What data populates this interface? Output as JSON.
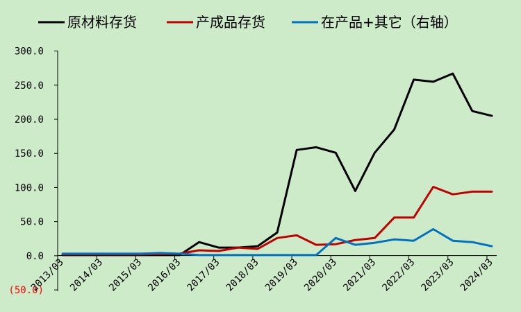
{
  "chart_data": {
    "type": "line",
    "x": [
      "2013/03",
      "2013/06",
      "2013/09",
      "2013/12",
      "2014/03",
      "2014/06",
      "2014/09",
      "2014/12",
      "2015/03",
      "2015/06",
      "2015/09",
      "2015/12",
      "2016/03",
      "2016/06",
      "2016/09",
      "2016/12",
      "2017/03",
      "2017/06",
      "2017/09",
      "2017/12",
      "2018/03",
      "2018/06",
      "2018/09",
      "2018/12",
      "2019/03",
      "2019/06",
      "2019/09",
      "2019/12",
      "2020/03",
      "2020/06",
      "2020/09",
      "2020/12",
      "2021/03",
      "2021/06",
      "2021/09",
      "2021/12",
      "2022/03",
      "2022/06",
      "2022/09",
      "2022/12",
      "2023/03",
      "2023/06",
      "2023/09",
      "2023/12",
      "2024/03"
    ],
    "x_tick_labels": [
      "2013/03",
      "2014/03",
      "2015/03",
      "2016/03",
      "2017/03",
      "2018/03",
      "2019/03",
      "2020/03",
      "2021/03",
      "2022/03",
      "2023/03",
      "2024/03"
    ],
    "y_tick_labels": [
      "(50.0)",
      "0.0",
      "50.0",
      "100.0",
      "150.0",
      "200.0",
      "250.0",
      "300.0"
    ],
    "ylim": [
      -50,
      300
    ],
    "y_ticks": [
      -50,
      0,
      50,
      100,
      150,
      200,
      250,
      300
    ],
    "legend_position": "top",
    "grid": false,
    "series": [
      {
        "name": "原材料存货",
        "color": "#000000",
        "points": [
          [
            "2013/03",
            1
          ],
          [
            "2014/03",
            1
          ],
          [
            "2015/03",
            1
          ],
          [
            "2016/03",
            1
          ],
          [
            "2016/09",
            20
          ],
          [
            "2017/03",
            12
          ],
          [
            "2017/09",
            12
          ],
          [
            "2018/03",
            14
          ],
          [
            "2018/09",
            34
          ],
          [
            "2019/03",
            155
          ],
          [
            "2019/09",
            159
          ],
          [
            "2020/03",
            151
          ],
          [
            "2020/09",
            95
          ],
          [
            "2021/03",
            151
          ],
          [
            "2021/09",
            185
          ],
          [
            "2022/03",
            258
          ],
          [
            "2022/09",
            255
          ],
          [
            "2023/03",
            267
          ],
          [
            "2023/09",
            212
          ],
          [
            "2024/03",
            205
          ]
        ]
      },
      {
        "name": "产成品存货",
        "color": "#c00000",
        "points": [
          [
            "2013/03",
            2
          ],
          [
            "2014/03",
            2
          ],
          [
            "2015/03",
            2
          ],
          [
            "2016/03",
            3
          ],
          [
            "2016/09",
            8
          ],
          [
            "2017/03",
            7
          ],
          [
            "2017/09",
            12
          ],
          [
            "2018/03",
            10
          ],
          [
            "2018/09",
            26
          ],
          [
            "2019/03",
            30
          ],
          [
            "2019/09",
            16
          ],
          [
            "2020/03",
            17
          ],
          [
            "2020/09",
            23
          ],
          [
            "2021/03",
            26
          ],
          [
            "2021/09",
            56
          ],
          [
            "2022/03",
            56
          ],
          [
            "2022/09",
            101
          ],
          [
            "2023/03",
            90
          ],
          [
            "2023/09",
            94
          ],
          [
            "2024/03",
            94
          ]
        ]
      },
      {
        "name": "在产品+其它（右轴）",
        "color": "#0070c0",
        "points": [
          [
            "2013/03",
            3
          ],
          [
            "2014/03",
            3
          ],
          [
            "2015/03",
            3
          ],
          [
            "2015/09",
            4
          ],
          [
            "2016/03",
            3
          ],
          [
            "2016/09",
            1
          ],
          [
            "2017/03",
            1
          ],
          [
            "2017/09",
            1
          ],
          [
            "2018/03",
            1
          ],
          [
            "2018/09",
            1
          ],
          [
            "2019/03",
            1
          ],
          [
            "2019/09",
            1
          ],
          [
            "2020/03",
            26
          ],
          [
            "2020/09",
            16
          ],
          [
            "2021/03",
            19
          ],
          [
            "2021/09",
            24
          ],
          [
            "2022/03",
            22
          ],
          [
            "2022/09",
            39
          ],
          [
            "2023/03",
            22
          ],
          [
            "2023/09",
            20
          ],
          [
            "2024/03",
            14
          ]
        ]
      }
    ]
  },
  "legend": {
    "items": [
      {
        "label": "原材料存货",
        "color": "#000000"
      },
      {
        "label": "产成品存货",
        "color": "#c00000"
      },
      {
        "label": "在产品+其它（右轴）",
        "color": "#0070c0"
      }
    ]
  }
}
